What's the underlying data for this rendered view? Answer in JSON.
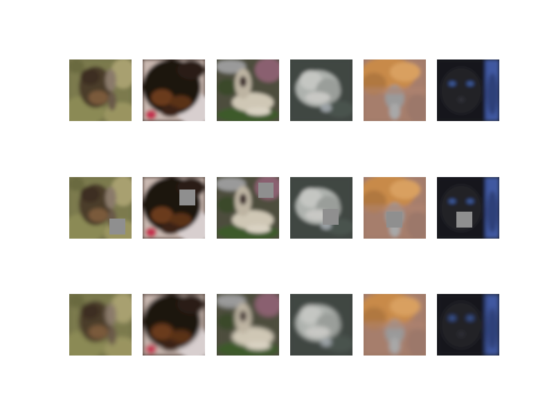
{
  "rows": [
    {
      "role": "original",
      "tiles": [
        {
          "subject": "tabby-cat",
          "bg": "#6f6d45",
          "mask": false
        },
        {
          "subject": "black-tan-dog",
          "bg": "#3a2a22",
          "mask": false
        },
        {
          "subject": "white-terrier",
          "bg": "#4a4a3a",
          "mask": false
        },
        {
          "subject": "white-cat",
          "bg": "#3e4440",
          "mask": false
        },
        {
          "subject": "orange-cat",
          "bg": "#9a7664",
          "mask": false
        },
        {
          "subject": "black-cat",
          "bg": "#1a1b1e",
          "mask": false
        }
      ]
    },
    {
      "role": "masked",
      "tiles": [
        {
          "subject": "tabby-cat",
          "bg": "#6f6d45",
          "mask": true
        },
        {
          "subject": "black-tan-dog",
          "bg": "#3a2a22",
          "mask": true
        },
        {
          "subject": "white-terrier",
          "bg": "#4a4a3a",
          "mask": true
        },
        {
          "subject": "white-cat",
          "bg": "#3e4440",
          "mask": true
        },
        {
          "subject": "orange-cat",
          "bg": "#9a7664",
          "mask": true
        },
        {
          "subject": "black-cat",
          "bg": "#1a1b1e",
          "mask": true
        }
      ]
    },
    {
      "role": "reconstructed",
      "tiles": [
        {
          "subject": "tabby-cat",
          "bg": "#6f6d45",
          "mask": false
        },
        {
          "subject": "black-tan-dog",
          "bg": "#3a2a22",
          "mask": false
        },
        {
          "subject": "white-terrier",
          "bg": "#4a4a3a",
          "mask": false
        },
        {
          "subject": "white-cat",
          "bg": "#3e4440",
          "mask": false
        },
        {
          "subject": "orange-cat",
          "bg": "#9a7664",
          "mask": false
        },
        {
          "subject": "black-cat",
          "bg": "#1a1b1e",
          "mask": false
        }
      ]
    }
  ],
  "mask_color": "#8f8f8f"
}
